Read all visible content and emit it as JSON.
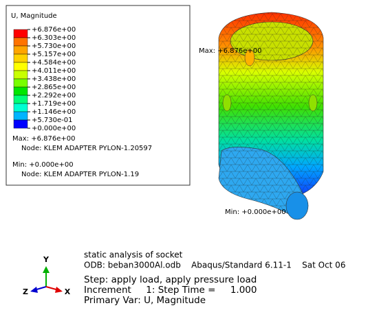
{
  "legend": {
    "title": "U, Magnitude",
    "levels": [
      "+6.876e+00",
      "+6.303e+00",
      "+5.730e+00",
      "+5.157e+00",
      "+4.584e+00",
      "+4.011e+00",
      "+3.438e+00",
      "+2.865e+00",
      "+2.292e+00",
      "+1.719e+00",
      "+1.146e+00",
      "+5.730e-01",
      "+0.000e+00"
    ],
    "colors": [
      "#ff0000",
      "#ff7300",
      "#ffa500",
      "#ffd200",
      "#ffff00",
      "#c8ff00",
      "#78ff00",
      "#00e600",
      "#00ff78",
      "#00ffd2",
      "#00b4ff",
      "#0000ff"
    ],
    "max_label": "Max: +6.876e+00",
    "max_node": "Node: KLEM ADAPTER PYLON-1.20597",
    "min_label": "Min: +0.000e+00",
    "min_node": "Node: KLEM ADAPTER PYLON-1.19"
  },
  "viewport": {
    "max_label": "Max: +6.876e+00",
    "min_label": "Min: +0.000e+00"
  },
  "triad": {
    "y": "Y",
    "z": "Z",
    "x": "X"
  },
  "info": {
    "title": "static analysis of socket",
    "odb": "ODB: beban3000Al.odb    Abaqus/Standard 6.11-1    Sat Oct 06",
    "step": "Step: apply load, apply pressure load",
    "increment": "Increment     1: Step Time =     1.000",
    "primary_var": "Primary Var: U, Magnitude"
  }
}
